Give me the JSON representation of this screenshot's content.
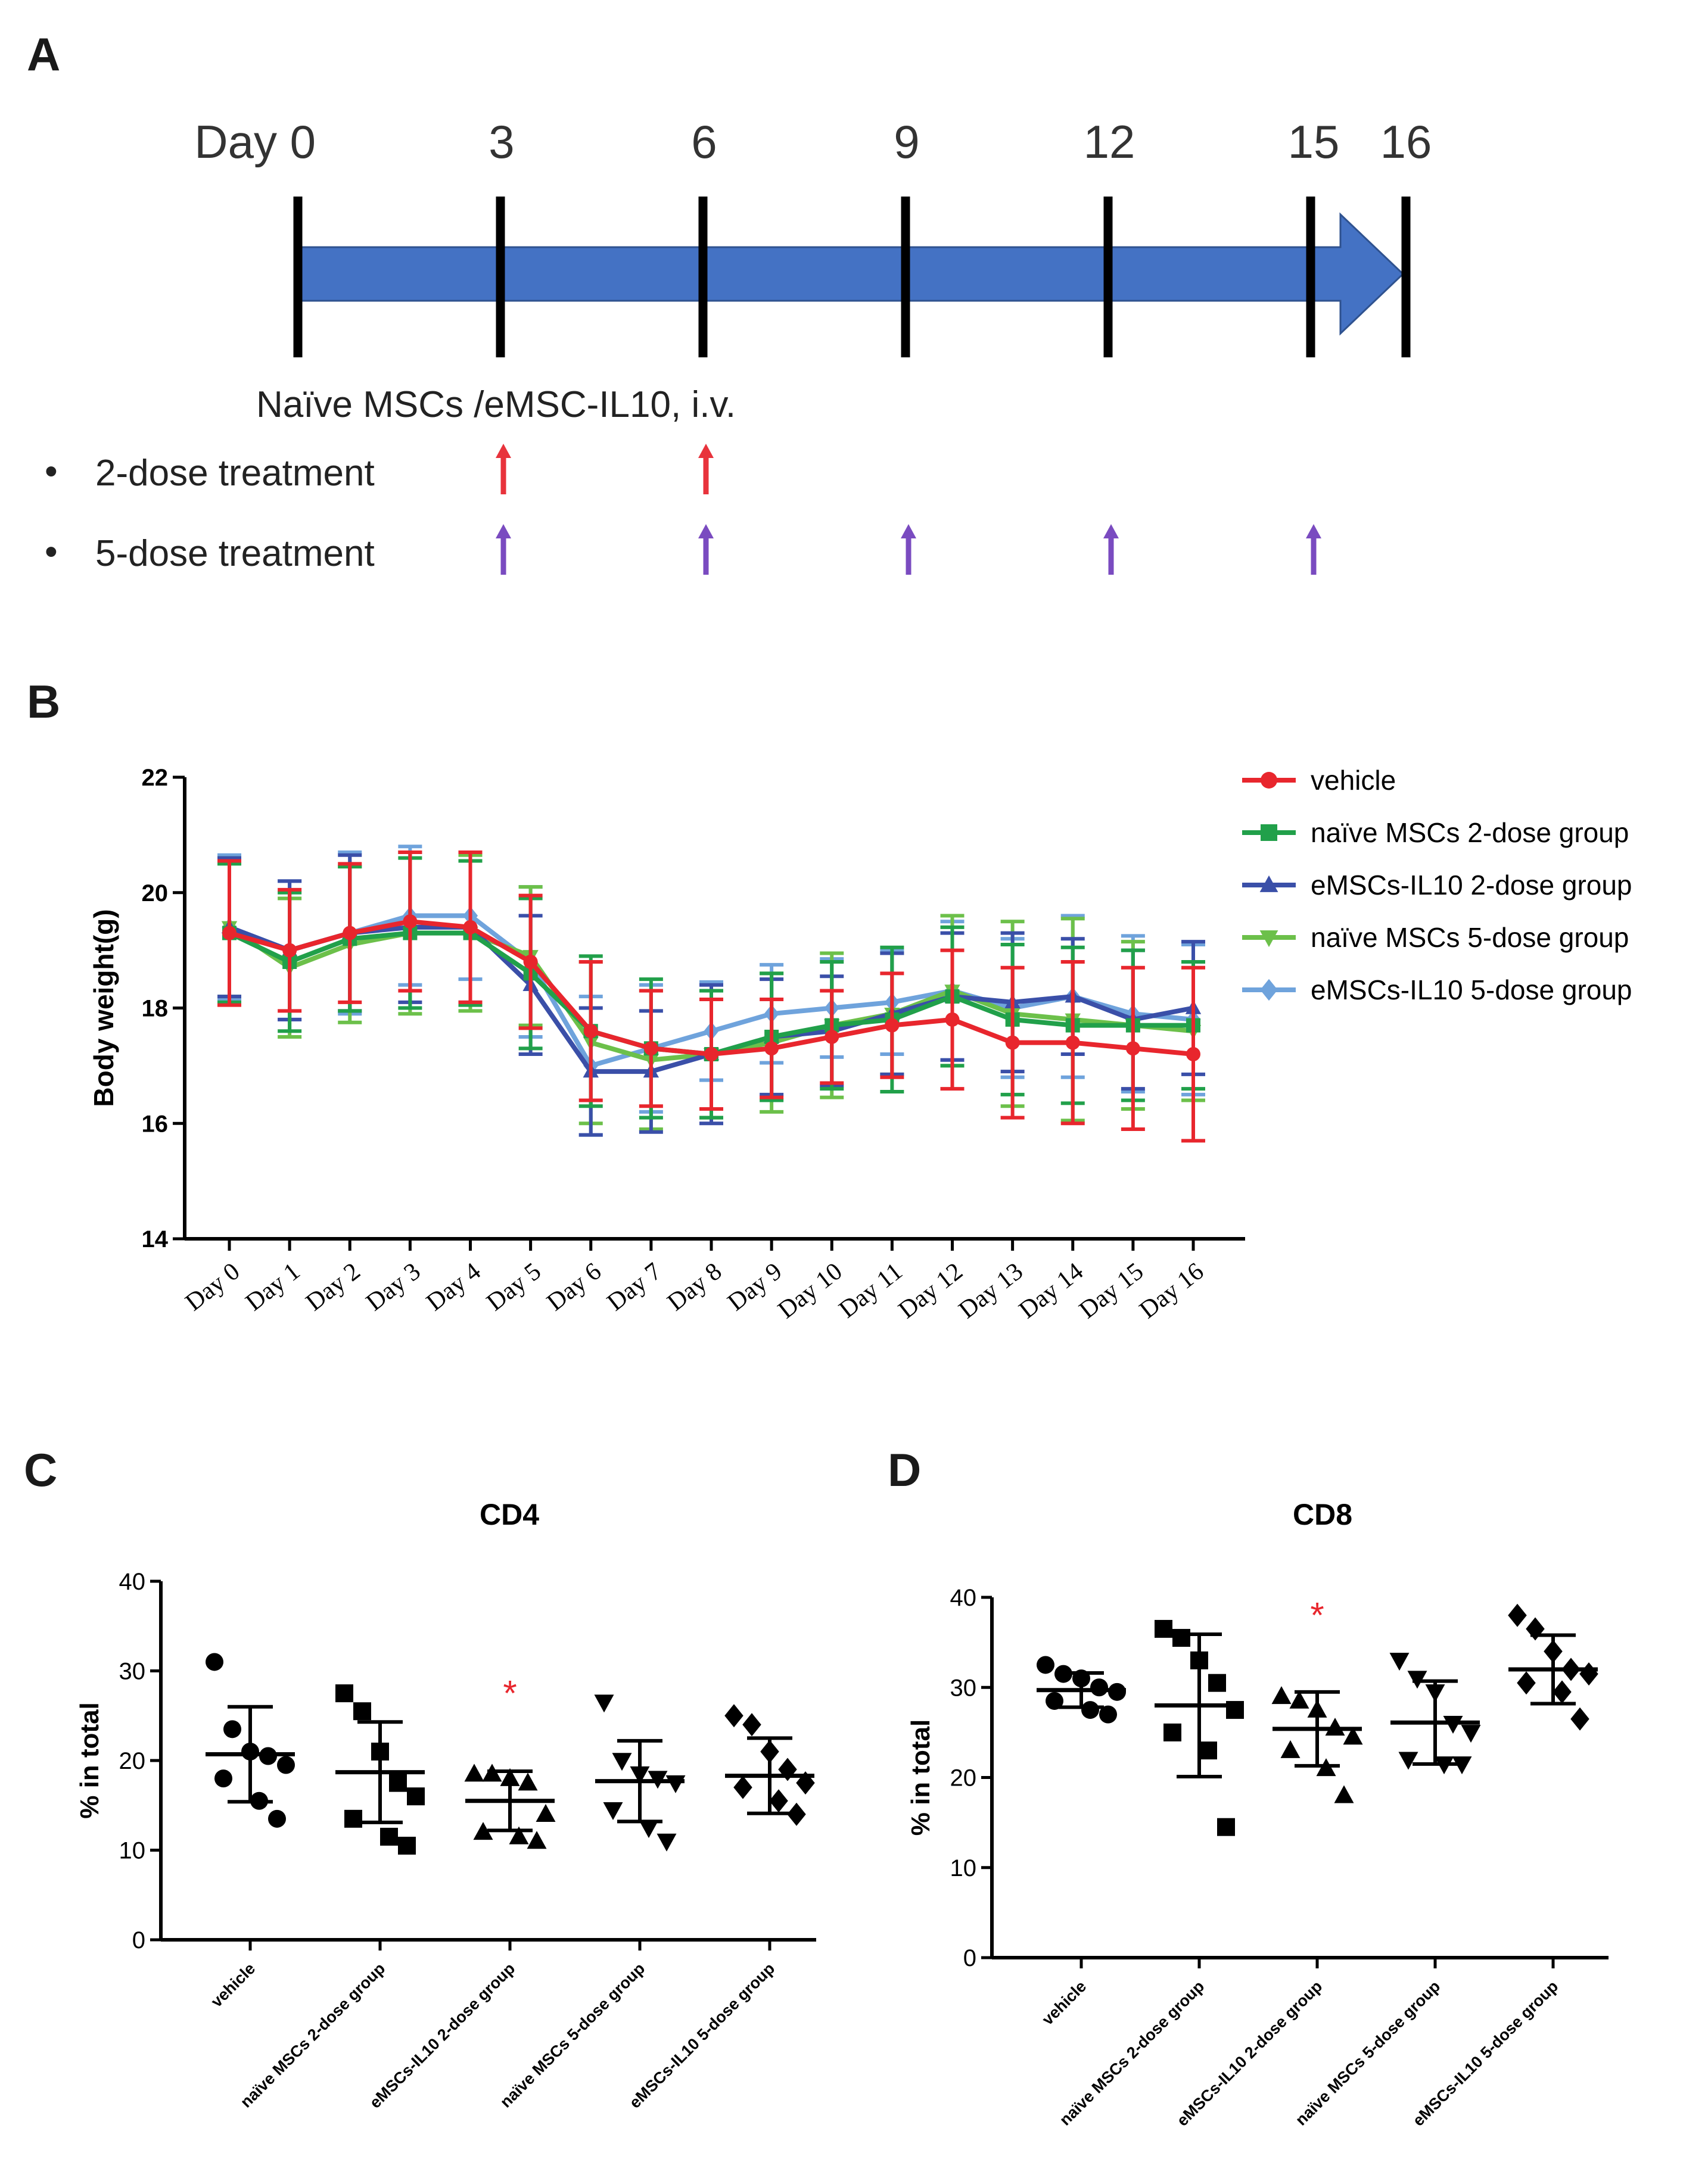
{
  "panels": {
    "a": {
      "letter": "A",
      "day_ticks": [
        "Day 0",
        "3",
        "6",
        "9",
        "12",
        "15",
        "16"
      ],
      "administration_label": "Naïve MSCs /eMSC-IL10, i.v.",
      "bullet": "•",
      "treatments": [
        {
          "label": "2-dose treatment",
          "arrow_color": "#e8333c",
          "days": [
            3,
            6
          ]
        },
        {
          "label": "5-dose treatment",
          "arrow_color": "#7a4bc0",
          "days": [
            3,
            6,
            9,
            12,
            15
          ]
        }
      ],
      "timeline_color": "#4472c4",
      "timeline_stroke": "#2f528f"
    },
    "b": {
      "letter": "B"
    },
    "c": {
      "letter": "C"
    },
    "d": {
      "letter": "D"
    }
  },
  "chart_data": [
    {
      "id": "body-weight",
      "type": "line",
      "title": "",
      "xlabel": "",
      "ylabel": "Body weight(g)",
      "ylim": [
        14,
        22
      ],
      "yticks": [
        "14",
        "16",
        "18",
        "20",
        "22"
      ],
      "categories": [
        "Day 0",
        "Day 1",
        "Day 2",
        "Day 3",
        "Day 4",
        "Day 5",
        "Day 6",
        "Day 7",
        "Day 8",
        "Day 9",
        "Day 10",
        "Day 11",
        "Day 12",
        "Day 13",
        "Day 14",
        "Day 15",
        "Day 16"
      ],
      "legend_position": "right",
      "series": [
        {
          "name": "eMSCs-IL10 5-dose group",
          "color": "#6fa3dc",
          "marker": "diamond",
          "values": [
            19.4,
            19.0,
            19.3,
            19.6,
            19.6,
            18.8,
            17.0,
            17.3,
            17.6,
            17.9,
            18.0,
            18.1,
            18.3,
            18.0,
            18.2,
            17.9,
            17.8
          ],
          "sd": [
            1.25,
            1.2,
            1.4,
            1.2,
            1.1,
            1.3,
            1.2,
            1.1,
            0.85,
            0.85,
            0.85,
            0.9,
            1.2,
            1.2,
            1.4,
            1.35,
            1.3
          ]
        },
        {
          "name": "naïve MSCs 5-dose group",
          "color": "#6cc04a",
          "marker": "triangle-down",
          "values": [
            19.4,
            18.7,
            19.1,
            19.3,
            19.3,
            18.9,
            17.4,
            17.1,
            17.2,
            17.4,
            17.7,
            17.9,
            18.3,
            17.9,
            17.8,
            17.7,
            17.6
          ],
          "sd": [
            1.2,
            1.2,
            1.35,
            1.4,
            1.35,
            1.2,
            1.4,
            1.2,
            1.1,
            1.2,
            1.25,
            1.05,
            1.3,
            1.6,
            1.75,
            1.45,
            1.2
          ]
        },
        {
          "name": "eMSCs-IL10 2-dose group",
          "color": "#3a4fa8",
          "marker": "triangle-up",
          "values": [
            19.4,
            19.0,
            19.3,
            19.4,
            19.4,
            18.4,
            16.9,
            16.9,
            17.2,
            17.5,
            17.6,
            17.9,
            18.2,
            18.1,
            18.2,
            17.8,
            18.0
          ],
          "sd": [
            1.2,
            1.2,
            1.35,
            1.3,
            1.3,
            1.2,
            1.1,
            1.05,
            1.2,
            1.0,
            0.95,
            1.05,
            1.1,
            1.2,
            1.0,
            1.2,
            1.15
          ]
        },
        {
          "name": "naïve MSCs 2-dose group",
          "color": "#21a04a",
          "marker": "square",
          "values": [
            19.3,
            18.8,
            19.2,
            19.3,
            19.3,
            18.6,
            17.6,
            17.3,
            17.2,
            17.5,
            17.7,
            17.8,
            18.2,
            17.8,
            17.7,
            17.7,
            17.7
          ],
          "sd": [
            1.2,
            1.2,
            1.25,
            1.3,
            1.25,
            1.3,
            1.3,
            1.2,
            1.1,
            1.1,
            1.1,
            1.25,
            1.2,
            1.3,
            1.35,
            1.3,
            1.1
          ]
        },
        {
          "name": "vehicle",
          "color": "#e8262d",
          "marker": "circle",
          "values": [
            19.3,
            19.0,
            19.3,
            19.5,
            19.4,
            18.8,
            17.6,
            17.3,
            17.2,
            17.3,
            17.5,
            17.7,
            17.8,
            17.4,
            17.4,
            17.3,
            17.2
          ],
          "sd": [
            1.25,
            1.05,
            1.2,
            1.2,
            1.3,
            1.15,
            1.2,
            1.0,
            0.95,
            0.85,
            0.8,
            0.9,
            1.2,
            1.3,
            1.4,
            1.4,
            1.5
          ]
        }
      ],
      "legend_order": [
        "vehicle",
        "naïve MSCs 2-dose group",
        "eMSCs-IL10 2-dose group",
        "naïve MSCs 5-dose group",
        "eMSCs-IL10 5-dose group"
      ]
    },
    {
      "id": "cd4",
      "type": "scatter",
      "title": "CD4",
      "xlabel": "",
      "ylabel": "% in total",
      "ylim": [
        0,
        40
      ],
      "yticks": [
        "0",
        "10",
        "20",
        "30",
        "40"
      ],
      "categories": [
        "vehicle",
        "naïve MSCs 2-dose group",
        "eMSCs-IL10 2-dose group",
        "naïve MSCs 5-dose group",
        "eMSCs-IL10 5-dose group"
      ],
      "markers": [
        "circle",
        "square",
        "triangle-up",
        "triangle-down",
        "diamond"
      ],
      "points": [
        [
          31,
          23.5,
          21,
          20.5,
          19.5,
          18,
          15.5,
          13.5
        ],
        [
          27.5,
          25.5,
          21,
          17.5,
          16,
          13.5,
          11.5,
          10.5
        ],
        [
          18.5,
          18.5,
          18,
          17.5,
          14,
          12,
          11.5,
          11
        ],
        [
          26.5,
          20,
          18.5,
          18,
          17.5,
          14.5,
          12.5,
          11
        ],
        [
          25,
          24,
          21,
          19,
          17.5,
          17,
          15.5,
          14
        ]
      ],
      "mean": [
        20.7,
        18.7,
        15.5,
        17.7,
        18.3
      ],
      "sd": [
        5.3,
        5.6,
        3.3,
        4.5,
        4.2
      ],
      "annotations": [
        {
          "text": "*",
          "category": "eMSCs-IL10 2-dose group",
          "y": 28,
          "color": "#e8262d"
        }
      ]
    },
    {
      "id": "cd8",
      "type": "scatter",
      "title": "CD8",
      "xlabel": "",
      "ylabel": "% in total",
      "ylim": [
        0,
        40
      ],
      "yticks": [
        "0",
        "10",
        "20",
        "30",
        "40"
      ],
      "categories": [
        "vehicle",
        "naïve MSCs 2-dose group",
        "eMSCs-IL10 2-dose group",
        "naïve MSCs 5-dose group",
        "eMSCs-IL10 5-dose group"
      ],
      "markers": [
        "circle",
        "square",
        "triangle-up",
        "triangle-down",
        "diamond"
      ],
      "points": [
        [
          32.5,
          31.5,
          31,
          30,
          29.5,
          28.5,
          27.5,
          27
        ],
        [
          36.5,
          35.5,
          33,
          30.5,
          27.5,
          25,
          23,
          14.5
        ],
        [
          29,
          28.5,
          27.5,
          25.5,
          24.5,
          23,
          21,
          18
        ],
        [
          33,
          31,
          29.5,
          26,
          25,
          22,
          21.5,
          21.5
        ],
        [
          38,
          36.5,
          34,
          32,
          31.5,
          30.5,
          29.5,
          26.5
        ]
      ],
      "mean": [
        29.7,
        28.0,
        25.4,
        26.1,
        32.0
      ],
      "sd": [
        1.9,
        7.9,
        4.1,
        4.6,
        3.8
      ],
      "annotations": [
        {
          "text": "*",
          "category": "eMSCs-IL10 2-dose group",
          "y": 38.5,
          "color": "#e8262d"
        }
      ]
    }
  ]
}
